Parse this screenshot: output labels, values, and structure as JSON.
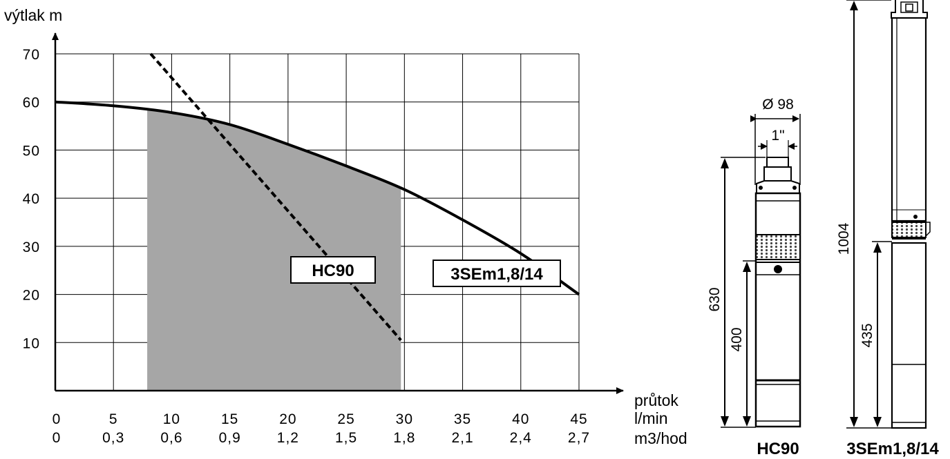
{
  "chart_data": {
    "type": "line",
    "ylabel": "výtlak  m",
    "xlabel": "průtok",
    "x_unit_primary": "l/min",
    "x_unit_secondary": "m3/hod",
    "xlim": [
      0,
      45
    ],
    "ylim": [
      0,
      70
    ],
    "grid": true,
    "x_ticks": [
      0,
      5,
      10,
      15,
      20,
      25,
      30,
      35,
      40,
      45
    ],
    "x_tick_labels_secondary": [
      "0",
      "0,3",
      "0,6",
      "0,9",
      "1,2",
      "1,5",
      "1,8",
      "2,1",
      "2,4",
      "2,7"
    ],
    "y_ticks": [
      10,
      20,
      30,
      40,
      50,
      60,
      70
    ],
    "series": [
      {
        "name": "3SEm1,8/14",
        "style": "solid",
        "color": "#000000",
        "x": [
          0,
          5,
          10,
          15,
          20,
          25,
          30,
          35,
          40,
          45
        ],
        "y": [
          60,
          59.2,
          57.8,
          55.3,
          51.2,
          46.7,
          41.8,
          35.5,
          28.5,
          20
        ]
      },
      {
        "name": "HC90",
        "style": "dashed",
        "color": "#000000",
        "x": [
          8.2,
          29.7
        ],
        "y": [
          70,
          10.5
        ]
      }
    ],
    "shaded_region": {
      "x_range": [
        7.9,
        29.7
      ],
      "upper_bound_series": "3SEm1,8/14",
      "color": "#a6a6a6"
    }
  },
  "pumps": {
    "hc90": {
      "name": "HC90",
      "diameter_label": "Ø 98",
      "outlet_label": "1\"",
      "total_length_label": "630",
      "partial_length_label": "400"
    },
    "sem": {
      "name": "3SEm1,8/14",
      "total_length_label": "1004",
      "partial_length_label": "435"
    }
  }
}
